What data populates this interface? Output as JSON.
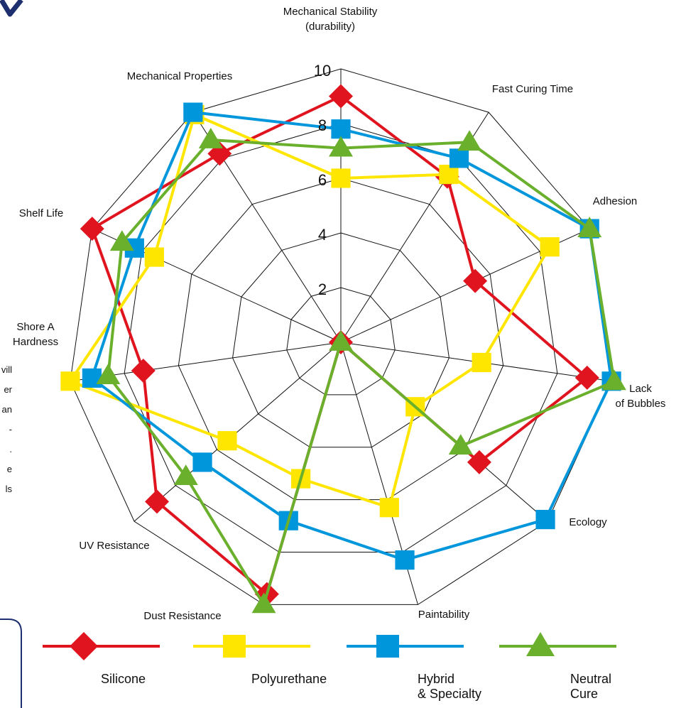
{
  "chart_data": {
    "type": "radar",
    "title": "",
    "axes": [
      [
        "Mechanical Stability",
        "(durability)"
      ],
      [
        "Fast Curing Time"
      ],
      [
        "Adhesion"
      ],
      [
        "Lack",
        "of Bubbles"
      ],
      [
        "Ecology"
      ],
      [
        "Paintability"
      ],
      [
        "Dust Resistance"
      ],
      [
        "UV Resistance"
      ],
      [
        "Shore A",
        "Hardness"
      ],
      [
        "Shelf Life"
      ],
      [
        "Mechanical Properties"
      ]
    ],
    "ticks": [
      "2",
      "4",
      "6",
      "8",
      "10"
    ],
    "rlim": [
      0,
      10
    ],
    "series": [
      {
        "name": "Silicone",
        "marker": "diamond",
        "color": "#e0141e",
        "values": [
          9,
          7.2,
          5.4,
          9.1,
          6.7,
          0,
          9.6,
          8.9,
          7.3,
          10,
          8.2
        ]
      },
      {
        "name": "Polyurethane",
        "marker": "square",
        "color": "#ffe600",
        "values": [
          6,
          7.3,
          8.4,
          5.2,
          3.6,
          6.3,
          5.2,
          5.5,
          10,
          7.5,
          9.9
        ]
      },
      {
        "name": "Hybrid & Specialty",
        "marker": "square",
        "color": "#0096dc",
        "values": [
          7.8,
          8,
          10,
          10,
          9.9,
          8.3,
          6.8,
          6.7,
          9.2,
          8.3,
          10
        ]
      },
      {
        "name": "Neutral Cure",
        "marker": "triangle",
        "color": "#6ab02c",
        "values": [
          7.1,
          8.7,
          10,
          10.1,
          5.8,
          0,
          10,
          7.5,
          8.6,
          8.8,
          8.8
        ]
      }
    ],
    "legend": {
      "position": "bottom",
      "labels": [
        [
          "Silicone"
        ],
        [
          "Polyurethane"
        ],
        [
          "Hybrid",
          "& Specialty"
        ],
        [
          "Neutral",
          "Cure"
        ]
      ]
    },
    "grid": true
  },
  "clipped_text": {
    "left_fragments": [
      "vill",
      "er",
      "an",
      "-",
      ".",
      "e",
      "ls"
    ]
  }
}
